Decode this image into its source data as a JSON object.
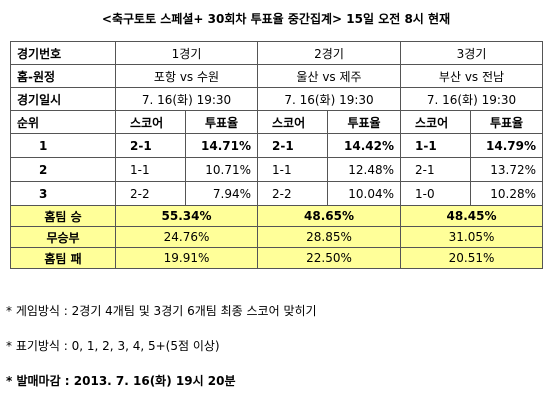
{
  "title": "<축구토토 스페셜+ 30회차 투표율 중간집계> 15일 오전 8시 현재",
  "table": {
    "rows": [
      [
        "경기번호",
        "1경기",
        "2경기",
        "3경기"
      ],
      [
        "홈-원정",
        "포항 vs 수원",
        "울산 vs 제주",
        "부산 vs 전남"
      ],
      [
        "경기일시",
        "7. 16(화) 19:30",
        "7. 16(화) 19:30",
        "7. 16(화) 19:30"
      ],
      [
        "순위",
        "스코어",
        "투표율",
        "스코어",
        "투표율",
        "스코어",
        "투표율"
      ],
      [
        "1",
        "2-1",
        "14.71%",
        "2-1",
        "14.42%",
        "1-1",
        "14.79%"
      ],
      [
        "2",
        "1-1",
        "10.71%",
        "1-1",
        "12.48%",
        "2-1",
        "13.72%"
      ],
      [
        "3",
        "2-2",
        "7.94%",
        "2-2",
        "10.04%",
        "1-0",
        "10.28%"
      ],
      [
        "홈팀 승",
        "55.34%",
        "48.65%",
        "48.45%"
      ],
      [
        "무승부",
        "24.76%",
        "28.85%",
        "31.05%"
      ],
      [
        "홈팀 패",
        "19.91%",
        "22.50%",
        "20.51%"
      ]
    ]
  },
  "notes": [
    "* 게임방식 : 2경기 4개팀 및 3경기 6개팀 최종 스코어 맞히기",
    "* 표기방식 : 0, 1, 2, 3, 4, 5+(5점 이상)",
    "* 발매마감 : 2013. 7. 16(화) 19시 20분"
  ]
}
